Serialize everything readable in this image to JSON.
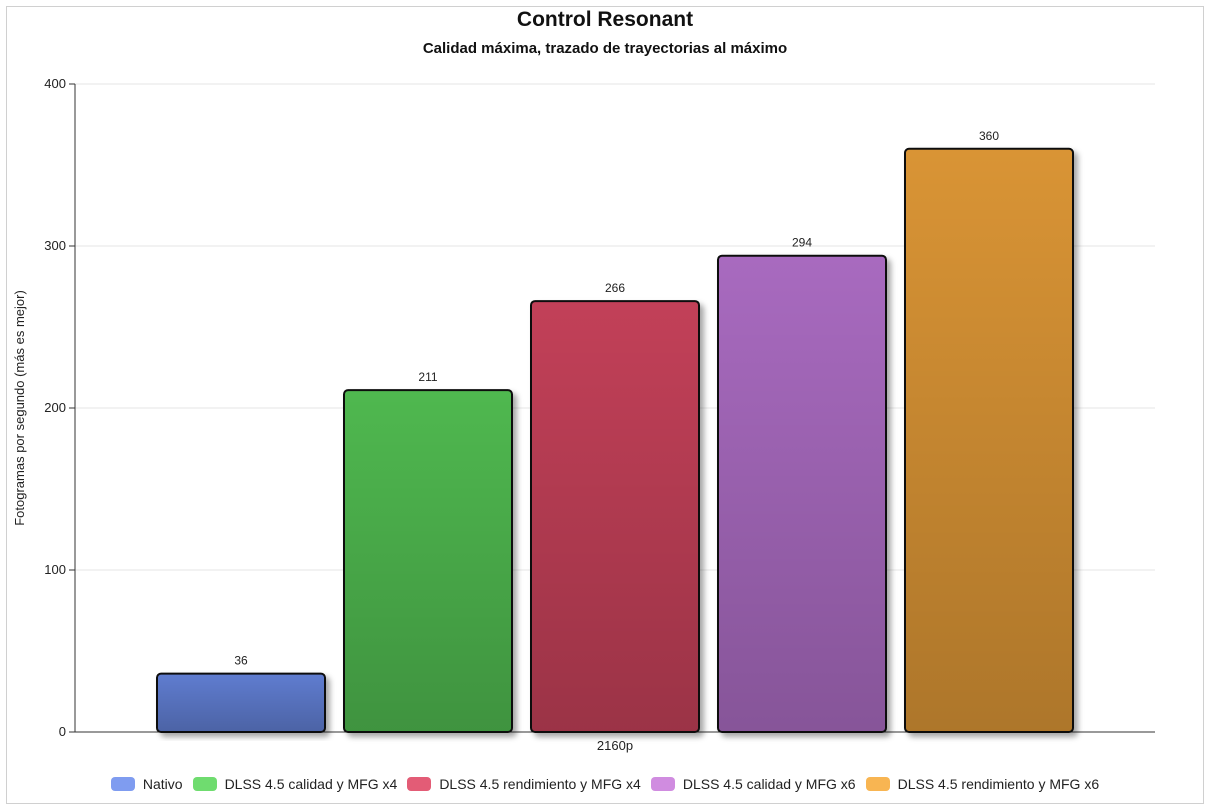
{
  "chart_data": {
    "type": "bar",
    "title": "Control Resonant",
    "subtitle": "Calidad máxima, trazado de trayectorias al máximo",
    "xlabel": "2160p",
    "ylabel": "Fotogramas por segundo (más es mejor)",
    "ylim": [
      0,
      400
    ],
    "yticks": [
      0,
      100,
      200,
      300,
      400
    ],
    "categories": [
      "2160p"
    ],
    "grid": true,
    "legend_position": "bottom",
    "series": [
      {
        "name": "Nativo",
        "values": [
          36
        ],
        "color": "#5f7ccf",
        "legend_color": "#7f9cf0"
      },
      {
        "name": "DLSS 4.5 calidad y MFG x4",
        "values": [
          211
        ],
        "color": "#4fb84f",
        "legend_color": "#6fdc6f"
      },
      {
        "name": "DLSS 4.5 rendimiento y MFG x4",
        "values": [
          266
        ],
        "color": "#c23f58",
        "legend_color": "#e35c76"
      },
      {
        "name": "DLSS 4.5 calidad y MFG x6",
        "values": [
          294
        ],
        "color": "#a86bbf",
        "legend_color": "#d08ce0"
      },
      {
        "name": "DLSS 4.5 rendimiento y MFG x6",
        "values": [
          360
        ],
        "color": "#d99434",
        "legend_color": "#f8b552"
      }
    ]
  }
}
